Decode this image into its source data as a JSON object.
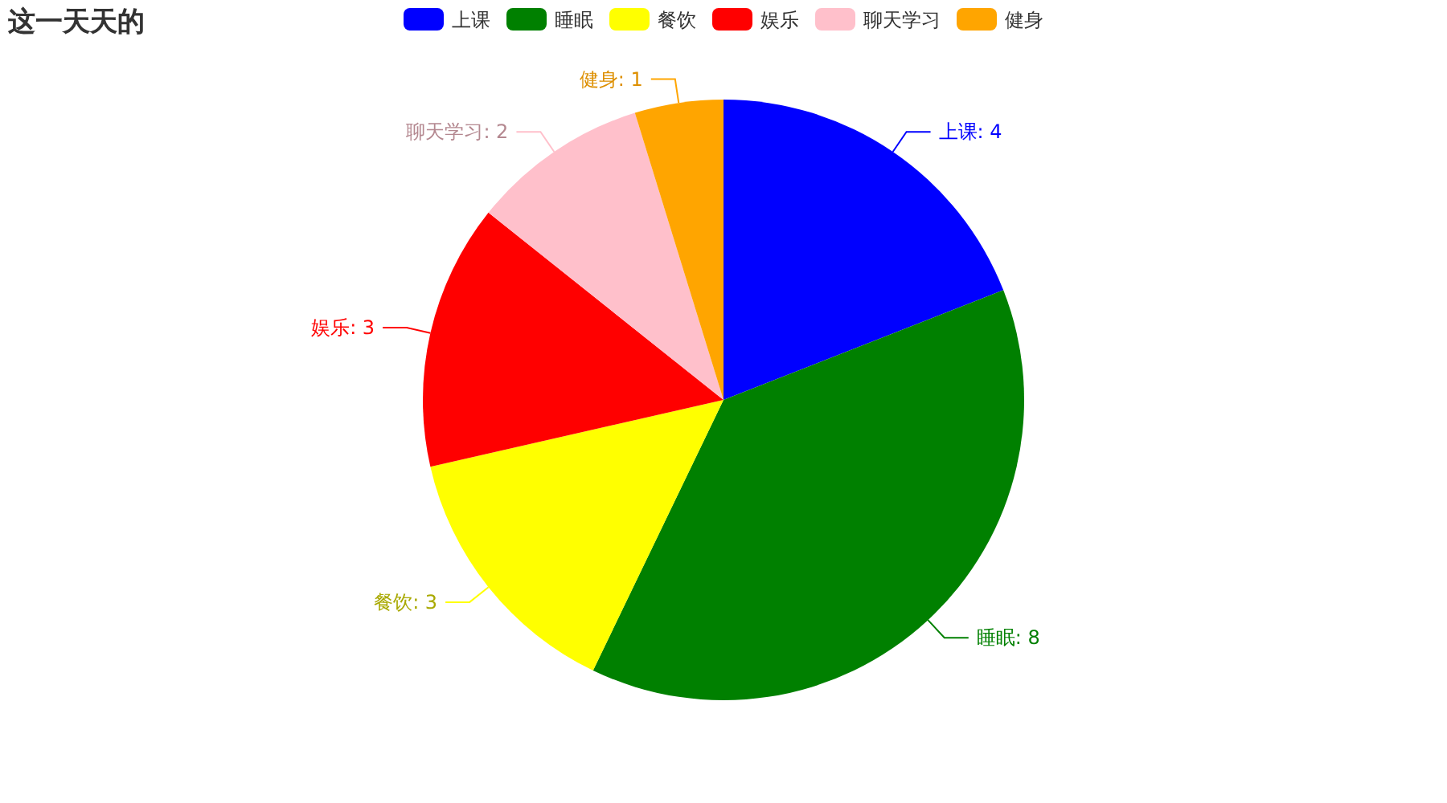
{
  "chart_data": {
    "type": "pie",
    "title": "这一天天的",
    "categories": [
      "上课",
      "睡眠",
      "餐饮",
      "娱乐",
      "聊天学习",
      "健身"
    ],
    "values": [
      4,
      8,
      3,
      3,
      2,
      1
    ],
    "value_labels": [
      "上课: 4",
      "睡眠: 8",
      "餐饮: 3",
      "娱乐: 3",
      "聊天学习: 2",
      "健身: 1"
    ],
    "colors": [
      "#0000ff",
      "#008000",
      "#ffff00",
      "#ff0000",
      "#ffc0cb",
      "#ffa500"
    ],
    "legend": "top"
  }
}
